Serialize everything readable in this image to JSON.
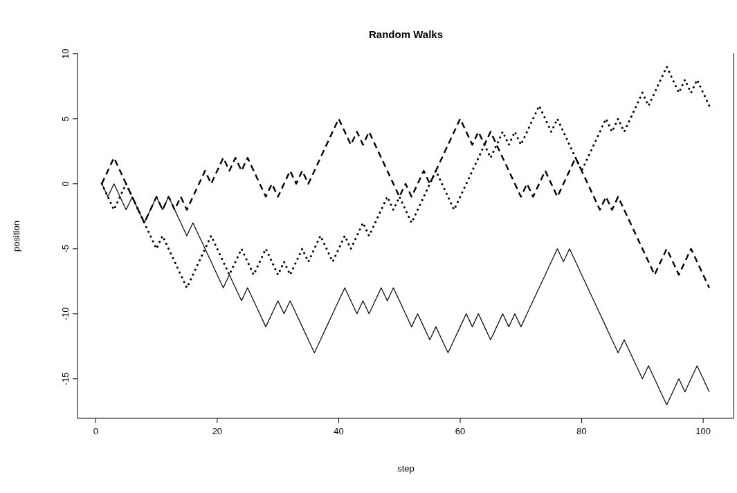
{
  "chart_data": {
    "type": "line",
    "title": "Random Walks",
    "xlabel": "step",
    "ylabel": "position",
    "x": [
      1,
      2,
      3,
      4,
      5,
      6,
      7,
      8,
      9,
      10,
      11,
      12,
      13,
      14,
      15,
      16,
      17,
      18,
      19,
      20,
      21,
      22,
      23,
      24,
      25,
      26,
      27,
      28,
      29,
      30,
      31,
      32,
      33,
      34,
      35,
      36,
      37,
      38,
      39,
      40,
      41,
      42,
      43,
      44,
      45,
      46,
      47,
      48,
      49,
      50,
      51,
      52,
      53,
      54,
      55,
      56,
      57,
      58,
      59,
      60,
      61,
      62,
      63,
      64,
      65,
      66,
      67,
      68,
      69,
      70,
      71,
      72,
      73,
      74,
      75,
      76,
      77,
      78,
      79,
      80,
      81,
      82,
      83,
      84,
      85,
      86,
      87,
      88,
      89,
      90,
      91,
      92,
      93,
      94,
      95,
      96,
      97,
      98,
      99,
      100,
      101
    ],
    "series": [
      {
        "color": "#000000",
        "line_style": "solid",
        "values": [
          0,
          -1,
          0,
          -1,
          -2,
          -1,
          -2,
          -3,
          -2,
          -1,
          -2,
          -1,
          -2,
          -3,
          -4,
          -3,
          -4,
          -5,
          -6,
          -7,
          -8,
          -7,
          -8,
          -9,
          -8,
          -9,
          -10,
          -11,
          -10,
          -9,
          -10,
          -9,
          -10,
          -11,
          -12,
          -13,
          -12,
          -11,
          -10,
          -9,
          -8,
          -9,
          -10,
          -9,
          -10,
          -9,
          -8,
          -9,
          -8,
          -9,
          -10,
          -11,
          -10,
          -11,
          -12,
          -11,
          -12,
          -13,
          -12,
          -11,
          -10,
          -11,
          -10,
          -11,
          -12,
          -11,
          -10,
          -11,
          -10,
          -11,
          -10,
          -9,
          -8,
          -7,
          -6,
          -5,
          -6,
          -5,
          -6,
          -7,
          -8,
          -9,
          -10,
          -11,
          -12,
          -13,
          -12,
          -13,
          -14,
          -15,
          -14,
          -15,
          -16,
          -17,
          -16,
          -15,
          -16,
          -15,
          -14,
          -15,
          -16
        ]
      },
      {
        "color": "#000000",
        "line_style": "dashed",
        "values": [
          0,
          1,
          2,
          1,
          0,
          -1,
          -2,
          -3,
          -2,
          -1,
          -2,
          -1,
          -2,
          -1,
          -2,
          -1,
          0,
          1,
          0,
          1,
          2,
          1,
          2,
          1,
          2,
          1,
          0,
          -1,
          0,
          -1,
          0,
          1,
          0,
          1,
          0,
          1,
          2,
          3,
          4,
          5,
          4,
          3,
          4,
          3,
          4,
          3,
          2,
          1,
          0,
          -1,
          0,
          -1,
          0,
          1,
          0,
          1,
          2,
          3,
          4,
          5,
          4,
          3,
          4,
          3,
          4,
          3,
          2,
          1,
          0,
          -1,
          0,
          -1,
          0,
          1,
          0,
          -1,
          0,
          1,
          2,
          1,
          0,
          -1,
          -2,
          -1,
          -2,
          -1,
          -2,
          -3,
          -4,
          -5,
          -6,
          -7,
          -6,
          -5,
          -6,
          -7,
          -6,
          -5,
          -6,
          -7,
          -8
        ]
      },
      {
        "color": "#000000",
        "line_style": "dotted",
        "values": [
          0,
          -1,
          -2,
          -1,
          0,
          -1,
          -2,
          -3,
          -4,
          -5,
          -4,
          -5,
          -6,
          -7,
          -8,
          -7,
          -6,
          -5,
          -4,
          -5,
          -6,
          -7,
          -6,
          -5,
          -6,
          -7,
          -6,
          -5,
          -6,
          -7,
          -6,
          -7,
          -6,
          -5,
          -6,
          -5,
          -4,
          -5,
          -6,
          -5,
          -4,
          -5,
          -4,
          -3,
          -4,
          -3,
          -2,
          -1,
          -2,
          -1,
          -2,
          -3,
          -2,
          -1,
          0,
          1,
          0,
          -1,
          -2,
          -1,
          0,
          1,
          2,
          3,
          2,
          3,
          4,
          3,
          4,
          3,
          4,
          5,
          6,
          5,
          4,
          5,
          4,
          3,
          2,
          1,
          2,
          3,
          4,
          5,
          4,
          5,
          4,
          5,
          6,
          7,
          6,
          7,
          8,
          9,
          8,
          7,
          8,
          7,
          8,
          7,
          6
        ]
      }
    ],
    "xlim": [
      -3,
      105
    ],
    "xticks": [
      0,
      20,
      40,
      60,
      80,
      100
    ],
    "ylim": [
      -18.04,
      10.04
    ],
    "yticks": [
      -15,
      -10,
      -5,
      0,
      5,
      10
    ],
    "grid": false,
    "legend": false,
    "marker": "none"
  }
}
